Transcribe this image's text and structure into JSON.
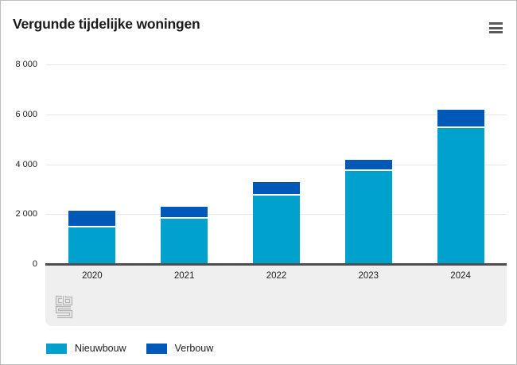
{
  "widget": {
    "title": "Vergunde tijdelijke woningen",
    "menu_icon": "hamburger-menu-icon",
    "logo_icon": "cbs-logo"
  },
  "colors": {
    "nieuwbouw": "#00a1cd",
    "verbouw": "#0058b8",
    "axis_line": "#4d4d4d",
    "gridline": "#e6e6e6",
    "band_background": "#efefef",
    "text": "#1d1d1d",
    "logo_gray": "#b5b5b5",
    "border": "#bdbdbd"
  },
  "chart_data": {
    "type": "bar",
    "stacked": true,
    "title": "Vergunde tijdelijke woningen",
    "categories": [
      "2020",
      "2021",
      "2022",
      "2023",
      "2024"
    ],
    "series": [
      {
        "name": "Nieuwbouw",
        "color": "#00a1cd",
        "values": [
          1510,
          1840,
          2780,
          3770,
          5470
        ]
      },
      {
        "name": "Verbouw",
        "color": "#0058b8",
        "values": [
          620,
          450,
          490,
          410,
          710
        ]
      }
    ],
    "totals": [
      2130,
      2290,
      3270,
      4180,
      6180
    ],
    "xlabel": "",
    "ylabel": "",
    "ylim": [
      0,
      8000
    ],
    "ytick_step": 2000,
    "yticks": [
      {
        "value": 0,
        "label": "0"
      },
      {
        "value": 2000,
        "label": "2 000"
      },
      {
        "value": 4000,
        "label": "4 000"
      },
      {
        "value": 6000,
        "label": "6 000"
      },
      {
        "value": 8000,
        "label": "8 000"
      }
    ],
    "grid": true,
    "legend_position": "bottom"
  },
  "legend": {
    "items": [
      {
        "label": "Nieuwbouw",
        "color": "#00a1cd"
      },
      {
        "label": "Verbouw",
        "color": "#0058b8"
      }
    ]
  }
}
